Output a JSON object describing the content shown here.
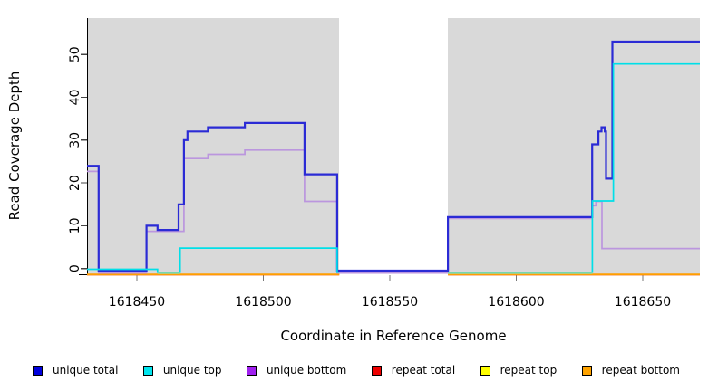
{
  "figure": {
    "background": "#ffffff",
    "plot_background": "#d9d9d9"
  },
  "x_axis": {
    "label": "Coordinate in Reference Genome",
    "ticks": [
      1618450,
      1618500,
      1618550,
      1618600,
      1618650
    ]
  },
  "y_axis": {
    "label": "Read Coverage Depth",
    "ticks": [
      0,
      10,
      20,
      30,
      40,
      50
    ]
  },
  "legend": {
    "items": [
      {
        "label": "unique total",
        "color": "#0000dd"
      },
      {
        "label": "unique top",
        "color": "#00e5ee"
      },
      {
        "label": "unique bottom",
        "color": "#a020f0"
      },
      {
        "label": "repeat total",
        "color": "#ee0000"
      },
      {
        "label": "repeat top",
        "color": "#ffff00"
      },
      {
        "label": "repeat bottom",
        "color": "#ffa300"
      }
    ]
  },
  "chart_data": {
    "type": "line",
    "subtype": "step-coverage",
    "title": "",
    "xlabel": "Coordinate in Reference Genome",
    "ylabel": "Read Coverage Depth",
    "x_range": [
      1618430,
      1618673
    ],
    "y_range": [
      0,
      58
    ],
    "grid": false,
    "legend_position": "bottom",
    "plot_background": "#d9d9d9",
    "masked_region": {
      "from": 1618530,
      "to": 1618573,
      "color": "#ffffff"
    },
    "series": [
      {
        "name": "repeat total",
        "color": "#dd0000",
        "segments": [
          [
            [
              1618430.3,
              0
            ],
            [
              1618530,
              0
            ]
          ],
          [
            [
              1618573,
              0
            ],
            [
              1618672.6,
              0
            ]
          ]
        ]
      },
      {
        "name": "repeat top",
        "color": "#f0f000",
        "segments": [
          [
            [
              1618430.3,
              0
            ],
            [
              1618530,
              0
            ]
          ],
          [
            [
              1618573,
              0
            ],
            [
              1618672.6,
              0
            ]
          ]
        ]
      },
      {
        "name": "repeat bottom",
        "color": "#ff9e00",
        "segments": [
          [
            [
              1618430.3,
              0
            ],
            [
              1618530,
              0
            ]
          ],
          [
            [
              1618573,
              0
            ],
            [
              1618672.6,
              0
            ]
          ]
        ]
      },
      {
        "name": "unique bottom",
        "color": "#bb96de",
        "segments": [
          [
            [
              1618430.3,
              23
            ],
            [
              1618434.9,
              0
            ],
            [
              1618453.8,
              9
            ],
            [
              1618468.6,
              26
            ],
            [
              1618478.1,
              27
            ],
            [
              1618492.7,
              28
            ],
            [
              1618516.3,
              16
            ],
            [
              1618529.2,
              0
            ],
            [
              1618573,
              12
            ],
            [
              1618630,
              15
            ],
            [
              1618631.5,
              16
            ],
            [
              1618633.9,
              5
            ],
            [
              1618672.6,
              5
            ]
          ]
        ]
      },
      {
        "name": "unique total",
        "color": "#2b2bd5",
        "segments": [
          [
            [
              1618430.3,
              24
            ],
            [
              1618434.9,
              0
            ],
            [
              1618453.8,
              10
            ],
            [
              1618458.2,
              9
            ],
            [
              1618466.5,
              15
            ],
            [
              1618468.6,
              30
            ],
            [
              1618470,
              32
            ],
            [
              1618478.1,
              33
            ],
            [
              1618492.7,
              34
            ],
            [
              1618516.3,
              22
            ],
            [
              1618529.2,
              0
            ],
            [
              1618573,
              12
            ],
            [
              1618630,
              29
            ],
            [
              1618632.5,
              32
            ],
            [
              1618633.7,
              33
            ],
            [
              1618635,
              32
            ],
            [
              1618635.5,
              21
            ],
            [
              1618638,
              53
            ],
            [
              1618672.6,
              53
            ]
          ]
        ]
      },
      {
        "name": "unique top",
        "color": "#00dfe8",
        "segments": [
          [
            [
              1618430.3,
              1
            ],
            [
              1618458.2,
              0
            ],
            [
              1618467.1,
              5
            ],
            [
              1618529.2,
              0
            ],
            [
              1618530,
              0
            ]
          ],
          [
            [
              1618573,
              0
            ],
            [
              1618630.1,
              16
            ],
            [
              1618638.4,
              48
            ],
            [
              1618672.6,
              48
            ]
          ]
        ]
      }
    ],
    "overlap_segments": [
      {
        "from": 1618458.3,
        "to": 1618467.1,
        "color": "#9cd39a"
      },
      {
        "from": 1618573,
        "to": 1618630.1,
        "color": "#9cd39a"
      }
    ]
  }
}
